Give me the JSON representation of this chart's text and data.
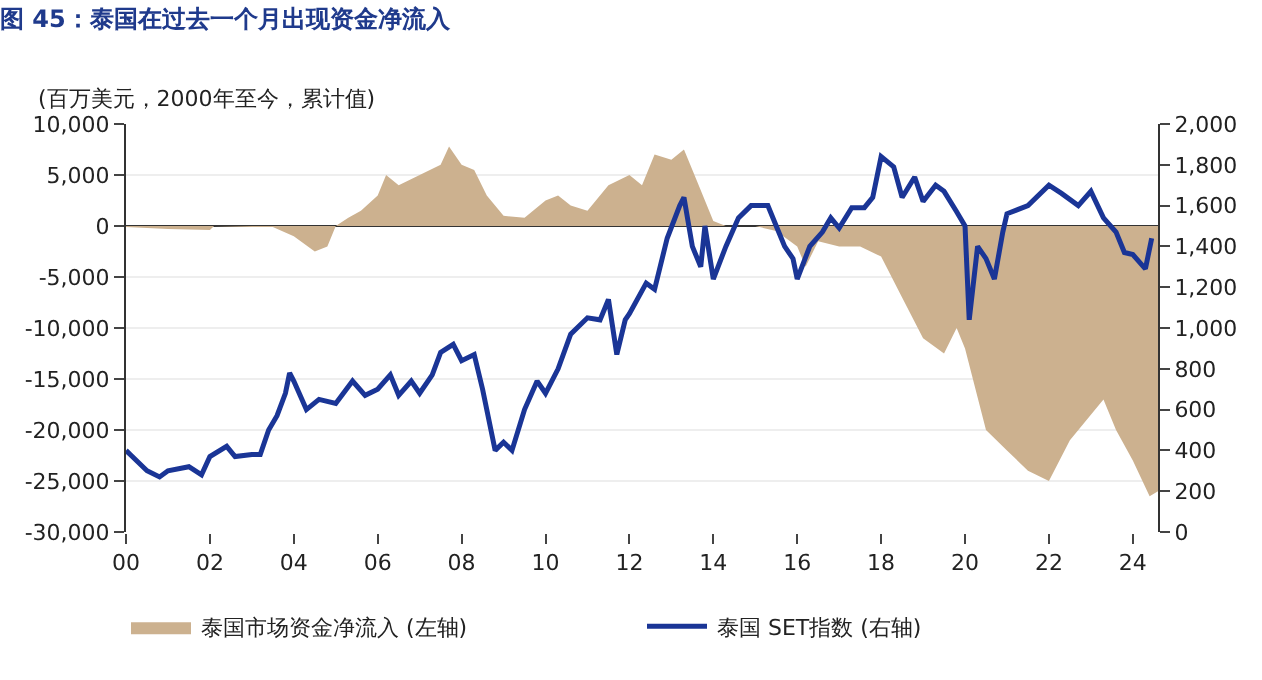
{
  "chart_data": {
    "type": "area",
    "title": "图 45：泰国在过去一个月出现资金净流入",
    "ylabel": "(百万美元，2000年至今，累计值)",
    "xlim": [
      2000,
      2024.6
    ],
    "xticks": [
      {
        "value": 2000,
        "label": "00"
      },
      {
        "value": 2002,
        "label": "02"
      },
      {
        "value": 2004,
        "label": "04"
      },
      {
        "value": 2006,
        "label": "06"
      },
      {
        "value": 2008,
        "label": "08"
      },
      {
        "value": 2010,
        "label": "10"
      },
      {
        "value": 2012,
        "label": "12"
      },
      {
        "value": 2014,
        "label": "14"
      },
      {
        "value": 2016,
        "label": "16"
      },
      {
        "value": 2018,
        "label": "18"
      },
      {
        "value": 2020,
        "label": "20"
      },
      {
        "value": 2022,
        "label": "22"
      },
      {
        "value": 2024,
        "label": "24"
      }
    ],
    "ylim": [
      -30000,
      10000
    ],
    "yticks": [
      {
        "value": -30000,
        "label": "-30,000"
      },
      {
        "value": -25000,
        "label": "-25,000"
      },
      {
        "value": -20000,
        "label": "-20,000"
      },
      {
        "value": -15000,
        "label": "-15,000"
      },
      {
        "value": -10000,
        "label": "-10,000"
      },
      {
        "value": -5000,
        "label": "-5,000"
      },
      0,
      {
        "value": 5000,
        "label": "5,000"
      },
      {
        "value": 10000,
        "label": "10,000"
      }
    ],
    "y2lim": [
      0,
      2000
    ],
    "y2ticks": [
      0,
      200,
      400,
      600,
      800,
      {
        "value": 1000,
        "label": "1,000"
      },
      {
        "value": 1200,
        "label": "1,200"
      },
      {
        "value": 1400,
        "label": "1,400"
      },
      {
        "value": 1600,
        "label": "1,600"
      },
      {
        "value": 1800,
        "label": "1,800"
      },
      {
        "value": 2000,
        "label": "2,000"
      }
    ],
    "grid": "y",
    "legend": "bottom",
    "series": [
      {
        "name": "泰国市场资金净流入 (左轴)",
        "color": "#ccb18f",
        "x": [
          2000,
          2001,
          2002,
          2002.1,
          2003,
          2003.5,
          2004,
          2004.5,
          2004.8,
          2005,
          2005.3,
          2005.6,
          2006,
          2006.2,
          2006.5,
          2007,
          2007.5,
          2007.7,
          2008,
          2008.3,
          2008.6,
          2009,
          2009.5,
          2010,
          2010.3,
          2010.6,
          2011,
          2011.5,
          2012,
          2012.3,
          2012.6,
          2013,
          2013.3,
          2013.6,
          2014,
          2014.3,
          2015,
          2015.5,
          2016,
          2016.2,
          2016.5,
          2017,
          2017.5,
          2018,
          2018.5,
          2019,
          2019.5,
          2019.8,
          2020,
          2020.5,
          2021,
          2021.5,
          2022,
          2022.5,
          2023,
          2023.3,
          2023.6,
          2024,
          2024.4,
          2024.6
        ],
        "values": [
          -100,
          -300,
          -400,
          0,
          -100,
          -100,
          -1000,
          -2500,
          -2000,
          0,
          800,
          1500,
          3000,
          5000,
          4000,
          5000,
          6000,
          7800,
          6000,
          5500,
          3000,
          1000,
          800,
          2500,
          3000,
          2000,
          1500,
          4000,
          5000,
          4000,
          7000,
          6500,
          7500,
          4500,
          500,
          0,
          0,
          -500,
          -2000,
          -4000,
          -1500,
          -2000,
          -2000,
          -3000,
          -7000,
          -11000,
          -12500,
          -10000,
          -12000,
          -20000,
          -22000,
          -24000,
          -25000,
          -21000,
          -18500,
          -17000,
          -20000,
          -23000,
          -26500,
          -26000
        ]
      },
      {
        "name": "泰国 SET指数 (右轴)",
        "type": "line",
        "axis": "y2",
        "color": "#1a3596",
        "x": [
          2000,
          2000.1,
          2000.5,
          2000.8,
          2001,
          2001.5,
          2001.8,
          2002,
          2002.4,
          2002.6,
          2003,
          2003.2,
          2003.4,
          2003.6,
          2003.8,
          2003.9,
          2004,
          2004.3,
          2004.6,
          2005,
          2005.4,
          2005.7,
          2006,
          2006.3,
          2006.5,
          2006.8,
          2007,
          2007.3,
          2007.5,
          2007.8,
          2008,
          2008.3,
          2008.5,
          2008.8,
          2009,
          2009.2,
          2009.5,
          2009.8,
          2010,
          2010.3,
          2010.6,
          2011,
          2011.3,
          2011.5,
          2011.7,
          2011.9,
          2012,
          2012.4,
          2012.6,
          2012.9,
          2013.2,
          2013.3,
          2013.5,
          2013.7,
          2013.8,
          2014,
          2014.3,
          2014.6,
          2014.9,
          2015.3,
          2015.5,
          2015.7,
          2015.9,
          2016,
          2016.3,
          2016.6,
          2016.8,
          2017,
          2017.3,
          2017.6,
          2017.8,
          2018,
          2018.3,
          2018.5,
          2018.8,
          2019,
          2019.3,
          2019.5,
          2019.8,
          2020,
          2020.1,
          2020.3,
          2020.5,
          2020.7,
          2020.9,
          2021,
          2021.5,
          2022,
          2022.3,
          2022.7,
          2023,
          2023.3,
          2023.6,
          2023.8,
          2024,
          2024.3,
          2024.45
        ],
        "values": [
          400,
          380,
          300,
          270,
          300,
          320,
          280,
          370,
          420,
          370,
          380,
          380,
          500,
          570,
          680,
          780,
          740,
          600,
          650,
          630,
          740,
          670,
          700,
          770,
          670,
          740,
          680,
          770,
          880,
          920,
          840,
          870,
          700,
          400,
          440,
          400,
          600,
          740,
          680,
          800,
          970,
          1050,
          1040,
          1140,
          870,
          1040,
          1070,
          1220,
          1190,
          1440,
          1600,
          1640,
          1400,
          1300,
          1500,
          1240,
          1400,
          1540,
          1600,
          1600,
          1500,
          1400,
          1340,
          1240,
          1400,
          1470,
          1540,
          1490,
          1590,
          1590,
          1640,
          1840,
          1790,
          1640,
          1740,
          1620,
          1700,
          1670,
          1570,
          1500,
          1040,
          1400,
          1340,
          1240,
          1470,
          1560,
          1600,
          1700,
          1660,
          1600,
          1670,
          1540,
          1470,
          1370,
          1360,
          1290,
          1440
        ]
      }
    ]
  }
}
